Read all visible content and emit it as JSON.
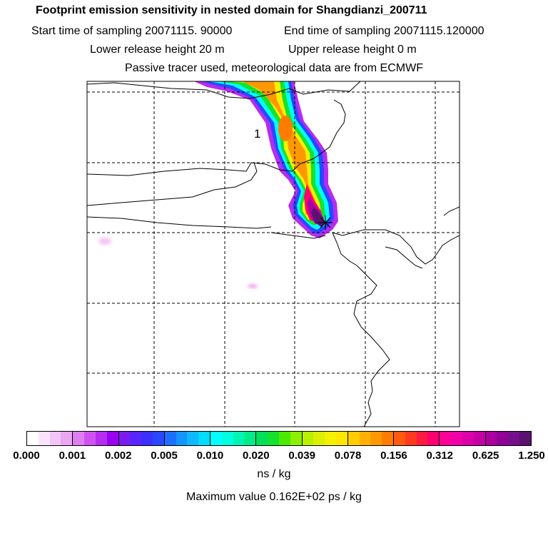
{
  "header": {
    "title": "Footprint emission sensitivity in nested domain for Shangdianzi_200711",
    "start_sampling": "Start time of sampling 20071115. 90000",
    "end_sampling": "End time of sampling 20071115.120000",
    "lower_release": "Lower release height   20 m",
    "upper_release": "Upper release height    0 m",
    "tracer_info": "Passive tracer used, meteorological data are from ECMWF"
  },
  "map": {
    "receptor_label": "1"
  },
  "legend": {
    "tick_labels": [
      "0.000",
      "0.001",
      "0.002",
      "0.005",
      "0.010",
      "0.020",
      "0.039",
      "0.078",
      "0.156",
      "0.312",
      "0.625",
      "1.250"
    ],
    "colors": [
      "#ffffff",
      "#fbe4fb",
      "#f3c4f6",
      "#eba6f0",
      "#df7ef0",
      "#cf52f0",
      "#b62cf0",
      "#9a00f0",
      "#7a1cf0",
      "#5a24ff",
      "#3c30ff",
      "#2848ff",
      "#1c70ff",
      "#1496ff",
      "#10b8ff",
      "#00dcff",
      "#00ffff",
      "#00ffe0",
      "#00f5b4",
      "#00ec88",
      "#00e05a",
      "#14e22e",
      "#4cea00",
      "#8cf000",
      "#b8f000",
      "#dcf000",
      "#f5f000",
      "#ffe600",
      "#ffcc00",
      "#ffb000",
      "#ff9800",
      "#ff7c00",
      "#ff5a10",
      "#ff3a20",
      "#ff1a40",
      "#ff0070",
      "#ff0096",
      "#f000a8",
      "#dc00a8",
      "#c400a4",
      "#aa00a0",
      "#900098",
      "#76108a",
      "#5c1070"
    ],
    "unit": "ns / kg",
    "max_value": "Maximum value  0.162E+02 ps / kg"
  }
}
